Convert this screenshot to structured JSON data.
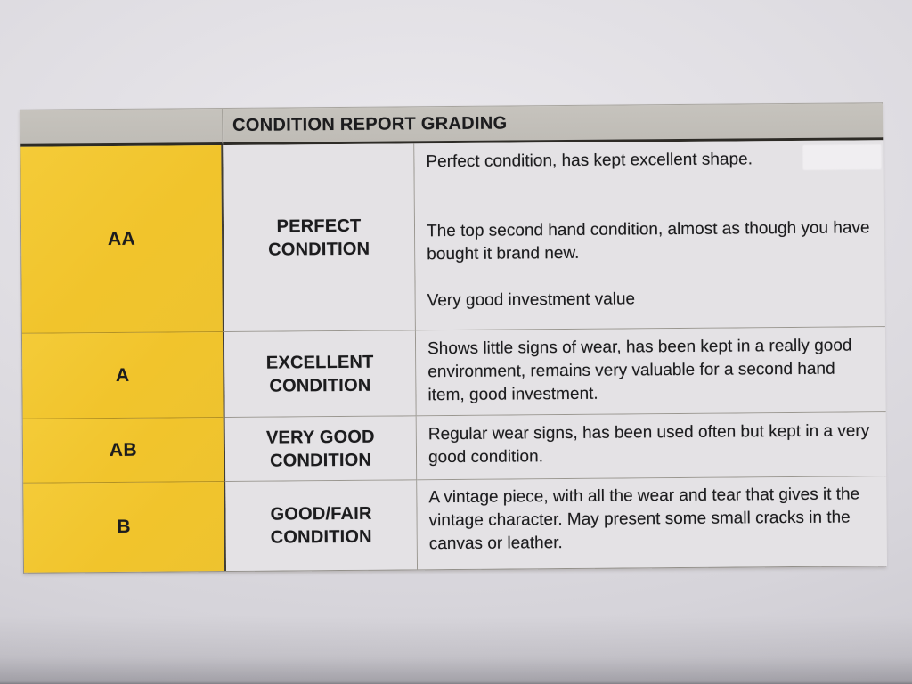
{
  "document": {
    "header_title": "CONDITION REPORT GRADING",
    "rows": [
      {
        "grade": "AA",
        "condition_label": "PERFECT CONDITION",
        "paragraphs": [
          "Perfect condition, has kept excellent shape.",
          "The top second hand condition, almost as though you have bought it brand new.",
          "Very good investment value"
        ]
      },
      {
        "grade": "A",
        "condition_label": "EXCELLENT CONDITION",
        "paragraphs": [
          "Shows little signs of wear, has been kept in a really good environment, remains very valuable for a second hand item, good investment."
        ]
      },
      {
        "grade": "AB",
        "condition_label": "VERY GOOD CONDITION",
        "paragraphs": [
          "Regular wear signs, has been used often but kept in a very good condition."
        ]
      },
      {
        "grade": "B",
        "condition_label": "GOOD/FAIR CONDITION",
        "paragraphs": [
          "A vintage piece, with all the wear and tear that gives it the vintage character. May present some small cracks in the canvas or leather."
        ]
      }
    ],
    "colors": {
      "grade_column_yellow": "#f2c733",
      "header_bar_gray": "#c1beb8",
      "cell_background": "#e4e2e5",
      "paper_background": "#dedce1",
      "text": "#1c1c1e",
      "header_rule_dark": "#2d2b26"
    }
  }
}
